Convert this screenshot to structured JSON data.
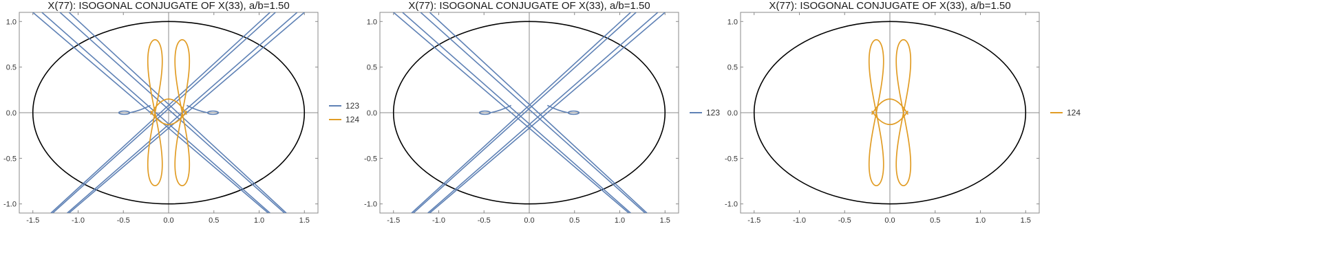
{
  "colors": {
    "ellipse": "#000000",
    "axis": "#888888",
    "frame": "#888888"
  },
  "chart_data": [
    {
      "type": "line",
      "title": "X(77): ISOGONAL CONJUGATE OF X(33), a/b=1.50",
      "xlim": [
        -1.65,
        1.65
      ],
      "ylim": [
        -1.1,
        1.1
      ],
      "xticks": [
        -1.5,
        -1.0,
        -0.5,
        0.0,
        0.5,
        1.0,
        1.5
      ],
      "xtick_labels": [
        "-1.5",
        "-1.0",
        "-0.5",
        "0.0",
        "0.5",
        "1.0",
        "1.5"
      ],
      "yticks": [
        -1.0,
        -0.5,
        0.0,
        0.5,
        1.0
      ],
      "ytick_labels": [
        "-1.0",
        "-0.5",
        "0.0",
        "0.5",
        "1.0"
      ],
      "legend_position": "right",
      "series": [
        {
          "name": "123",
          "color": "#5e81b5"
        },
        {
          "name": "124",
          "color": "#e19c24"
        }
      ]
    },
    {
      "type": "line",
      "title": "X(77): ISOGONAL CONJUGATE OF X(33), a/b=1.50",
      "xlim": [
        -1.65,
        1.65
      ],
      "ylim": [
        -1.1,
        1.1
      ],
      "xticks": [
        -1.5,
        -1.0,
        -0.5,
        0.0,
        0.5,
        1.0,
        1.5
      ],
      "xtick_labels": [
        "-1.5",
        "-1.0",
        "-0.5",
        "0.0",
        "0.5",
        "1.0",
        "1.5"
      ],
      "yticks": [
        -1.0,
        -0.5,
        0.0,
        0.5,
        1.0
      ],
      "ytick_labels": [
        "-1.0",
        "-0.5",
        "0.0",
        "0.5",
        "1.0"
      ],
      "legend_position": "right",
      "series": [
        {
          "name": "123",
          "color": "#5e81b5"
        }
      ]
    },
    {
      "type": "line",
      "title": "X(77): ISOGONAL CONJUGATE OF X(33), a/b=1.50",
      "xlim": [
        -1.65,
        1.65
      ],
      "ylim": [
        -1.1,
        1.1
      ],
      "xticks": [
        -1.5,
        -1.0,
        -0.5,
        0.0,
        0.5,
        1.0,
        1.5
      ],
      "xtick_labels": [
        "-1.5",
        "-1.0",
        "-0.5",
        "0.0",
        "0.5",
        "1.0",
        "1.5"
      ],
      "yticks": [
        -1.0,
        -0.5,
        0.0,
        0.5,
        1.0
      ],
      "ytick_labels": [
        "-1.0",
        "-0.5",
        "0.0",
        "0.5",
        "1.0"
      ],
      "legend_position": "right",
      "series": [
        {
          "name": "124",
          "color": "#e19c24"
        }
      ]
    }
  ]
}
